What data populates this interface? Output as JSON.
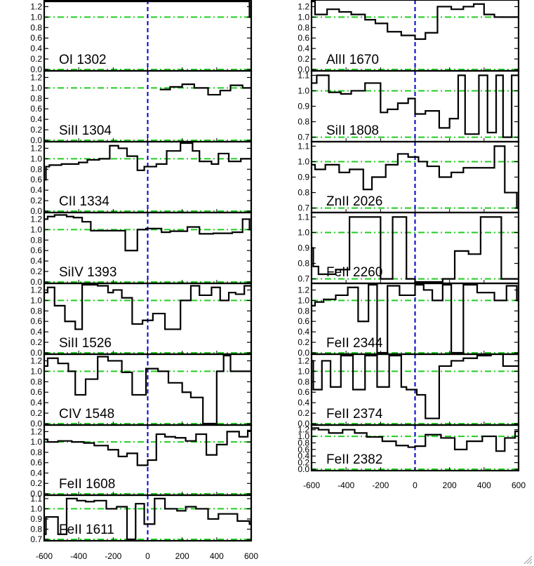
{
  "figure": {
    "styles": {
      "spectrum_color": "#000000",
      "continuum_line_color": "#22cc22",
      "zero_velocity_line_color": "#0000cc",
      "frame_color": "#000000",
      "background": "#ffffff"
    },
    "x_axis": {
      "range": [
        -600,
        600
      ],
      "ticks": [
        -600,
        -400,
        -200,
        0,
        200,
        400,
        600
      ],
      "tick_labels": [
        "-600",
        "-400",
        "-200",
        "0",
        "200",
        "400",
        "600"
      ]
    }
  },
  "chart_data": [
    {
      "type": "line",
      "label": "OI 1302",
      "ylim": [
        0.0,
        1.3
      ],
      "yticks": [
        0.0,
        0.2,
        0.4,
        0.6,
        0.8,
        1.0,
        1.2
      ],
      "ytick_labels": [
        "0.0",
        "0.2",
        "0.4",
        "0.6",
        "0.8",
        "1.0",
        "1.2"
      ],
      "reference_lines": [
        0.0,
        1.0
      ],
      "x": [
        -600,
        580,
        590,
        600
      ],
      "y": [
        1.3,
        1.3,
        1.0,
        1.3
      ]
    },
    {
      "type": "line",
      "label": "SiII 1304",
      "ylim": [
        0.0,
        1.3
      ],
      "yticks": [
        0.0,
        0.2,
        0.4,
        0.6,
        0.8,
        1.0,
        1.2
      ],
      "ytick_labels": [
        "0.0",
        "0.2",
        "0.4",
        "0.6",
        "0.8",
        "1.0",
        "1.2"
      ],
      "reference_lines": [
        0.0,
        1.0
      ],
      "x": [
        70,
        130,
        200,
        270,
        350,
        420,
        480,
        550,
        600
      ],
      "y": [
        0.97,
        1.02,
        1.07,
        1.0,
        0.87,
        0.95,
        1.05,
        1.0,
        1.0
      ]
    },
    {
      "type": "line",
      "label": "CII 1334",
      "ylim": [
        0.0,
        1.3
      ],
      "yticks": [
        0.0,
        0.2,
        0.4,
        0.6,
        0.8,
        1.0,
        1.2
      ],
      "ytick_labels": [
        "0.0",
        "0.2",
        "0.4",
        "0.6",
        "0.8",
        "1.0",
        "1.2"
      ],
      "reference_lines": [
        0.0,
        1.0
      ],
      "x": [
        -600,
        -590,
        -570,
        -500,
        -400,
        -350,
        -280,
        -220,
        -170,
        -120,
        -60,
        -20,
        50,
        110,
        190,
        260,
        300,
        370,
        410,
        470,
        540,
        580,
        600
      ],
      "y": [
        0.6,
        0.85,
        0.88,
        0.9,
        0.93,
        0.98,
        1.0,
        1.25,
        1.2,
        1.05,
        0.78,
        0.85,
        0.9,
        1.15,
        1.3,
        1.15,
        0.95,
        0.9,
        1.1,
        0.95,
        1.0,
        1.0,
        1.0
      ]
    },
    {
      "type": "line",
      "label": "SiIV 1393",
      "ylim": [
        0.0,
        1.3
      ],
      "yticks": [
        0.0,
        0.2,
        0.4,
        0.6,
        0.8,
        1.0,
        1.2
      ],
      "ytick_labels": [
        "0.0",
        "0.2",
        "0.4",
        "0.6",
        "0.8",
        "1.0",
        "1.2"
      ],
      "reference_lines": [
        0.0,
        1.0
      ],
      "x": [
        -600,
        -580,
        -540,
        -470,
        -430,
        -380,
        -330,
        -250,
        -130,
        -60,
        -10,
        80,
        130,
        230,
        300,
        380,
        490,
        550,
        590,
        600
      ],
      "y": [
        1.2,
        1.25,
        1.28,
        1.25,
        1.23,
        1.15,
        0.98,
        0.98,
        0.6,
        1.0,
        1.02,
        0.95,
        0.97,
        1.05,
        0.92,
        0.93,
        0.95,
        1.2,
        1.0,
        1.0
      ]
    },
    {
      "type": "line",
      "label": "SiII 1526",
      "ylim": [
        0.0,
        1.3
      ],
      "yticks": [
        0.0,
        0.2,
        0.4,
        0.6,
        0.8,
        1.0,
        1.2
      ],
      "ytick_labels": [
        "0.0",
        "0.2",
        "0.4",
        "0.6",
        "0.8",
        "1.0",
        "1.2"
      ],
      "reference_lines": [
        0.0,
        1.0
      ],
      "x": [
        -600,
        -580,
        -540,
        -480,
        -420,
        -380,
        -290,
        -230,
        -200,
        -150,
        -90,
        -30,
        30,
        100,
        190,
        250,
        300,
        370,
        420,
        470,
        510,
        560,
        600
      ],
      "y": [
        1.15,
        1.25,
        0.9,
        0.6,
        0.45,
        1.3,
        1.28,
        1.15,
        1.2,
        1.05,
        0.55,
        0.62,
        0.75,
        0.45,
        1.0,
        1.28,
        1.1,
        1.25,
        1.0,
        1.15,
        1.12,
        1.28,
        1.25
      ]
    },
    {
      "type": "line",
      "label": "CIV 1548",
      "ylim": [
        0.0,
        1.3
      ],
      "yticks": [
        0.0,
        0.2,
        0.4,
        0.6,
        0.8,
        1.0,
        1.2
      ],
      "ytick_labels": [
        "0.0",
        "0.2",
        "0.4",
        "0.6",
        "0.8",
        "1.0",
        "1.2"
      ],
      "reference_lines": [
        0.0,
        1.0
      ],
      "x": [
        -600,
        -580,
        -520,
        -460,
        -420,
        -360,
        -290,
        -230,
        -150,
        -90,
        -10,
        60,
        120,
        200,
        250,
        320,
        400,
        440,
        480,
        600
      ],
      "y": [
        1.1,
        1.25,
        1.15,
        1.0,
        0.55,
        0.85,
        1.28,
        1.2,
        0.98,
        0.55,
        1.05,
        1.0,
        0.78,
        0.6,
        0.5,
        0.0,
        1.0,
        1.3,
        1.0,
        1.3
      ]
    },
    {
      "type": "line",
      "label": "FeII 1608",
      "ylim": [
        0.0,
        1.3
      ],
      "yticks": [
        0.0,
        0.2,
        0.4,
        0.6,
        0.8,
        1.0,
        1.2
      ],
      "ytick_labels": [
        "0.0",
        "0.2",
        "0.4",
        "0.6",
        "0.8",
        "1.0",
        "1.2"
      ],
      "reference_lines": [
        0.0,
        1.0
      ],
      "x": [
        -600,
        -580,
        -520,
        -440,
        -370,
        -310,
        -230,
        -170,
        -120,
        -60,
        0,
        50,
        100,
        160,
        220,
        280,
        340,
        400,
        460,
        530,
        580,
        600
      ],
      "y": [
        1.05,
        1.0,
        1.02,
        1.0,
        0.98,
        0.93,
        0.85,
        0.72,
        0.78,
        0.55,
        0.65,
        1.15,
        1.1,
        1.08,
        1.02,
        1.15,
        0.75,
        0.95,
        1.2,
        1.1,
        1.22,
        1.3
      ]
    },
    {
      "type": "line",
      "label": "FeII 1611",
      "ylim": [
        0.7,
        1.12
      ],
      "yticks": [
        0.7,
        0.8,
        0.9,
        1.0,
        1.1
      ],
      "ytick_labels": [
        "0.7",
        "0.8",
        "0.9",
        "1.0",
        "1.1"
      ],
      "reference_lines": [
        0.7,
        1.0
      ],
      "x": [
        -600,
        -590,
        -520,
        -470,
        -410,
        -360,
        -310,
        -240,
        -180,
        -120,
        -70,
        -20,
        40,
        100,
        170,
        220,
        280,
        350,
        410,
        520,
        590,
        600
      ],
      "y": [
        0.75,
        0.92,
        0.75,
        1.1,
        1.08,
        1.07,
        1.08,
        1.0,
        1.02,
        0.7,
        1.05,
        0.85,
        1.1,
        1.0,
        0.98,
        1.02,
        1.0,
        0.9,
        0.95,
        0.88,
        0.85,
        0.95
      ]
    },
    {
      "type": "line",
      "label": "AlII 1670",
      "ylim": [
        0.0,
        1.3
      ],
      "yticks": [
        0.0,
        0.2,
        0.4,
        0.6,
        0.8,
        1.0,
        1.2
      ],
      "ytick_labels": [
        "0.0",
        "0.2",
        "0.4",
        "0.6",
        "0.8",
        "1.0",
        "1.2"
      ],
      "reference_lines": [
        0.0,
        1.0
      ],
      "x": [
        -600,
        -580,
        -510,
        -440,
        -370,
        -290,
        -230,
        -160,
        -80,
        0,
        60,
        130,
        210,
        280,
        340,
        400,
        460,
        520,
        590,
        600
      ],
      "y": [
        1.3,
        1.05,
        1.15,
        1.1,
        1.05,
        0.95,
        0.88,
        0.72,
        0.65,
        0.58,
        0.7,
        1.2,
        1.15,
        1.2,
        1.25,
        1.05,
        1.0,
        1.0,
        1.0,
        1.0
      ]
    },
    {
      "type": "line",
      "label": "SiII 1808",
      "ylim": [
        0.68,
        1.12
      ],
      "yticks": [
        0.7,
        0.8,
        0.9,
        1.0,
        1.1
      ],
      "ytick_labels": [
        "0.7",
        "0.8",
        "0.9",
        "1.0",
        "1.1"
      ],
      "reference_lines": [
        0.7,
        1.0
      ],
      "x": [
        -600,
        -570,
        -500,
        -430,
        -370,
        -290,
        -200,
        -160,
        -100,
        -40,
        0,
        60,
        140,
        200,
        250,
        290,
        370,
        420,
        470,
        510,
        560,
        600
      ],
      "y": [
        1.05,
        1.1,
        0.99,
        0.98,
        1.0,
        1.05,
        0.86,
        0.88,
        0.92,
        0.95,
        0.85,
        0.87,
        0.76,
        0.82,
        1.1,
        0.72,
        1.1,
        0.73,
        1.1,
        0.7,
        1.1,
        1.1
      ]
    },
    {
      "type": "line",
      "label": "ZnII 2026",
      "ylim": [
        0.68,
        1.12
      ],
      "yticks": [
        0.7,
        0.8,
        0.9,
        1.0,
        1.1
      ],
      "ytick_labels": [
        "0.7",
        "0.8",
        "0.9",
        "1.0",
        "1.1"
      ],
      "reference_lines": [
        0.7,
        1.0
      ],
      "x": [
        -600,
        -580,
        -520,
        -440,
        -380,
        -300,
        -250,
        -170,
        -100,
        -40,
        20,
        70,
        140,
        210,
        280,
        380,
        460,
        520,
        590,
        600
      ],
      "y": [
        0.98,
        0.95,
        0.98,
        0.93,
        0.95,
        0.82,
        0.9,
        0.98,
        1.05,
        1.03,
        1.0,
        0.97,
        0.9,
        0.93,
        0.96,
        0.96,
        1.1,
        0.8,
        0.7,
        0.7
      ]
    },
    {
      "type": "line",
      "label": "FeII 2260",
      "ylim": [
        0.68,
        1.12
      ],
      "yticks": [
        0.7,
        0.8,
        0.9,
        1.0,
        1.1
      ],
      "ytick_labels": [
        "0.7",
        "0.8",
        "0.9",
        "1.0",
        "1.1"
      ],
      "reference_lines": [
        0.7,
        1.0
      ],
      "x": [
        -600,
        -590,
        -560,
        -460,
        -380,
        -320,
        -200,
        -130,
        -50,
        0,
        160,
        230,
        310,
        380,
        500,
        540,
        600
      ],
      "y": [
        0.9,
        0.78,
        0.73,
        0.76,
        1.1,
        1.1,
        0.7,
        1.1,
        0.7,
        0.68,
        0.7,
        0.88,
        0.86,
        1.1,
        0.7,
        0.7,
        0.7
      ]
    },
    {
      "type": "line",
      "label": "FeII 2344",
      "ylim": [
        0.0,
        1.3
      ],
      "yticks": [
        0.0,
        0.2,
        0.4,
        0.6,
        0.8,
        1.0,
        1.2
      ],
      "ytick_labels": [
        "0.0",
        "0.2",
        "0.4",
        "0.6",
        "0.8",
        "1.0",
        "1.2"
      ],
      "reference_lines": [
        0.0,
        1.0
      ],
      "x": [
        -600,
        -580,
        -530,
        -460,
        -390,
        -330,
        -270,
        -220,
        -160,
        -90,
        0,
        50,
        100,
        160,
        210,
        280,
        360,
        460,
        530,
        590,
        600
      ],
      "y": [
        0.9,
        0.97,
        1.02,
        1.1,
        1.25,
        0.6,
        1.3,
        0.0,
        1.28,
        1.1,
        1.3,
        1.2,
        1.0,
        1.3,
        0.0,
        1.3,
        1.15,
        1.0,
        1.28,
        1.0,
        1.0
      ]
    },
    {
      "type": "line",
      "label": "FeII 2374",
      "ylim": [
        0.0,
        1.3
      ],
      "yticks": [
        0.0,
        0.2,
        0.4,
        0.6,
        0.8,
        1.0,
        1.2
      ],
      "ytick_labels": [
        "0.0",
        "0.2",
        "0.4",
        "0.6",
        "0.8",
        "1.0",
        "1.2"
      ],
      "reference_lines": [
        0.0,
        1.0
      ],
      "x": [
        -600,
        -590,
        -540,
        -490,
        -430,
        -360,
        -290,
        -220,
        -150,
        -80,
        -50,
        10,
        60,
        140,
        210,
        280,
        360,
        440,
        510,
        600
      ],
      "y": [
        1.2,
        0.65,
        1.2,
        0.7,
        1.3,
        0.65,
        1.3,
        0.7,
        1.3,
        0.7,
        0.65,
        0.55,
        0.1,
        1.1,
        1.2,
        1.25,
        1.3,
        1.35,
        1.1,
        1.1
      ]
    },
    {
      "type": "line",
      "label": "FeII 2382",
      "ylim": [
        0.0,
        1.3
      ],
      "yticks": [
        0.0,
        0.2,
        0.4,
        0.6,
        0.8,
        1.0,
        1.2
      ],
      "ytick_labels": [
        "0.0",
        "0.2",
        "0.4",
        "0.6",
        "0.8",
        "1.0",
        "1.2"
      ],
      "reference_lines": [
        0.0,
        1.0
      ],
      "x": [
        -600,
        -560,
        -500,
        -420,
        -350,
        -280,
        -190,
        -110,
        -40,
        0,
        60,
        150,
        230,
        300,
        390,
        470,
        520,
        580,
        600
      ],
      "y": [
        1.25,
        1.2,
        1.1,
        1.2,
        1.1,
        0.98,
        0.85,
        0.72,
        0.67,
        0.7,
        1.05,
        0.95,
        0.6,
        0.85,
        1.0,
        0.55,
        0.95,
        1.15,
        1.2
      ]
    }
  ]
}
